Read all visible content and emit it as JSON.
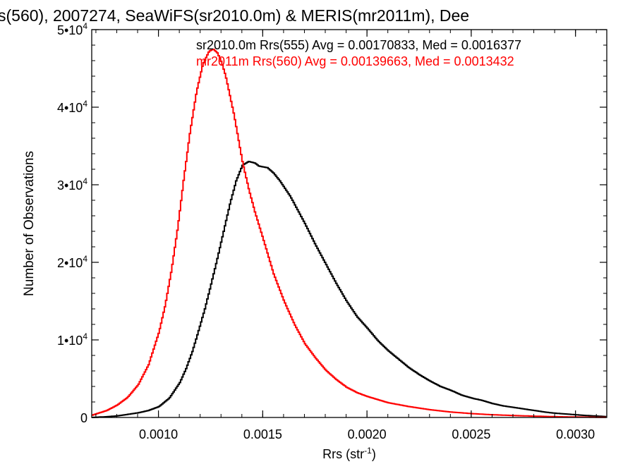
{
  "chart_data": {
    "type": "line",
    "title": "s(560), 2007274, SeaWiFS(sr2010.0m) & MERIS(mr2011m), Dee",
    "xlabel_main": "Rrs (str",
    "xlabel_sup": "-1",
    "xlabel_close": ")",
    "ylabel": "Number of Observations",
    "xlim": [
      0.00068,
      0.00315
    ],
    "ylim": [
      0,
      50000
    ],
    "x_ticks": [
      {
        "value": 0.001,
        "label": "0.0010"
      },
      {
        "value": 0.0015,
        "label": "0.0015"
      },
      {
        "value": 0.002,
        "label": "0.0020"
      },
      {
        "value": 0.0025,
        "label": "0.0025"
      },
      {
        "value": 0.003,
        "label": "0.0030"
      }
    ],
    "y_ticks": [
      {
        "value": 0,
        "base": "0",
        "exp": ""
      },
      {
        "value": 10000,
        "base": "1•10",
        "exp": "4"
      },
      {
        "value": 20000,
        "base": "2•10",
        "exp": "4"
      },
      {
        "value": 30000,
        "base": "3•10",
        "exp": "4"
      },
      {
        "value": 40000,
        "base": "4•10",
        "exp": "4"
      },
      {
        "value": 50000,
        "base": "5•10",
        "exp": "4"
      }
    ],
    "grid": false,
    "legend_position": "top-right",
    "series": [
      {
        "name": "sr2010.0m Rrs(555) Avg = 0.00170833, Med = 0.0016377",
        "color": "#000000",
        "x": [
          0.00068,
          0.00075,
          0.0008,
          0.00085,
          0.0009,
          0.00095,
          0.001,
          0.00105,
          0.0011,
          0.00113,
          0.00116,
          0.00119,
          0.00122,
          0.00125,
          0.00128,
          0.00131,
          0.00134,
          0.00137,
          0.0014,
          0.00143,
          0.00146,
          0.00148,
          0.0015,
          0.00152,
          0.00155,
          0.00158,
          0.0016,
          0.00163,
          0.00166,
          0.0017,
          0.00175,
          0.0018,
          0.00185,
          0.0019,
          0.00195,
          0.002,
          0.00205,
          0.0021,
          0.00215,
          0.0022,
          0.00225,
          0.0023,
          0.00235,
          0.0024,
          0.00245,
          0.0025,
          0.00255,
          0.0026,
          0.00265,
          0.0027,
          0.00275,
          0.0028,
          0.00285,
          0.0029,
          0.00295,
          0.003,
          0.00305,
          0.0031,
          0.00315
        ],
        "y": [
          0,
          100,
          200,
          400,
          600,
          900,
          1400,
          2500,
          4500,
          6300,
          8500,
          11200,
          14000,
          17200,
          20500,
          24000,
          27500,
          30500,
          32500,
          33000,
          32800,
          32400,
          32300,
          32200,
          31500,
          30500,
          29700,
          28500,
          27000,
          25000,
          22300,
          19800,
          17300,
          15000,
          13000,
          11500,
          9900,
          8600,
          7500,
          6400,
          5500,
          4700,
          4000,
          3500,
          2900,
          2500,
          2200,
          1800,
          1500,
          1300,
          1100,
          900,
          700,
          550,
          450,
          350,
          250,
          180,
          100
        ]
      },
      {
        "name": "mr2011m Rrs(560) Avg = 0.00139663, Med = 0.0013432",
        "color": "#ff0000",
        "x": [
          0.00068,
          0.00075,
          0.0008,
          0.00085,
          0.0009,
          0.00095,
          0.001,
          0.00103,
          0.00106,
          0.00109,
          0.00112,
          0.00115,
          0.00118,
          0.00121,
          0.00124,
          0.00126,
          0.00128,
          0.0013,
          0.00132,
          0.00134,
          0.00136,
          0.00138,
          0.0014,
          0.00143,
          0.00146,
          0.0015,
          0.00155,
          0.0016,
          0.00165,
          0.0017,
          0.00175,
          0.0018,
          0.00185,
          0.0019,
          0.00195,
          0.002,
          0.0021,
          0.0022,
          0.0023,
          0.0024,
          0.0025,
          0.0026,
          0.0027,
          0.0028,
          0.0029,
          0.003,
          0.0031,
          0.00315
        ],
        "y": [
          300,
          900,
          1600,
          2600,
          4200,
          6800,
          11000,
          14500,
          19000,
          24500,
          31000,
          37000,
          42000,
          45500,
          47200,
          47500,
          47000,
          45800,
          44000,
          41500,
          39000,
          36000,
          33000,
          29500,
          26500,
          23000,
          18500,
          15000,
          12000,
          9500,
          7700,
          6100,
          4900,
          3900,
          3200,
          2700,
          1900,
          1400,
          1000,
          700,
          500,
          350,
          250,
          170,
          100,
          60,
          30,
          20
        ]
      }
    ]
  }
}
